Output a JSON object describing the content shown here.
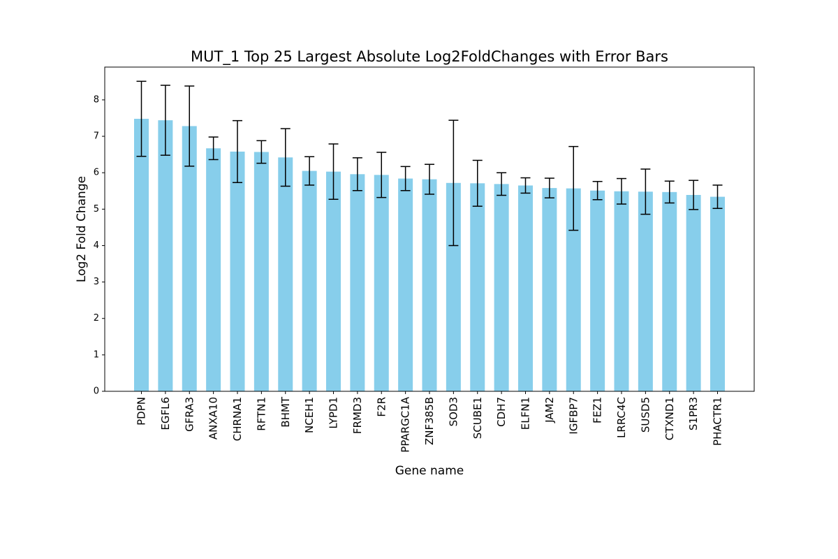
{
  "chart_data": {
    "type": "bar",
    "title": "MUT_1 Top 25 Largest Absolute Log2FoldChanges with Error Bars",
    "xlabel": "Gene name",
    "ylabel": "Log2 Fold Change",
    "ylim": [
      0,
      8.9
    ],
    "yticks": [
      0,
      1,
      2,
      3,
      4,
      5,
      6,
      7,
      8
    ],
    "grid": false,
    "bar_color": "#87ceeb",
    "error_color": "#000000",
    "categories": [
      "PDPN",
      "EGFL6",
      "GFRA3",
      "ANXA10",
      "CHRNA1",
      "RFTN1",
      "BHMT",
      "NCEH1",
      "LYPD1",
      "FRMD3",
      "F2R",
      "PPARGC1A",
      "ZNF385B",
      "SOD3",
      "SCUBE1",
      "CDH7",
      "ELFN1",
      "JAM2",
      "IGFBP7",
      "FEZ1",
      "LRRC4C",
      "SUSD5",
      "CTXND1",
      "S1PR3",
      "PHACTR1"
    ],
    "values": [
      7.48,
      7.44,
      7.28,
      6.67,
      6.58,
      6.57,
      6.42,
      6.05,
      6.03,
      5.96,
      5.94,
      5.84,
      5.82,
      5.72,
      5.71,
      5.69,
      5.65,
      5.58,
      5.57,
      5.51,
      5.49,
      5.48,
      5.47,
      5.39,
      5.34
    ],
    "errors": [
      1.03,
      0.96,
      1.1,
      0.31,
      0.85,
      0.31,
      0.79,
      0.39,
      0.76,
      0.45,
      0.62,
      0.33,
      0.41,
      1.72,
      0.63,
      0.31,
      0.21,
      0.27,
      1.15,
      0.25,
      0.35,
      0.62,
      0.3,
      0.4,
      0.32
    ]
  }
}
